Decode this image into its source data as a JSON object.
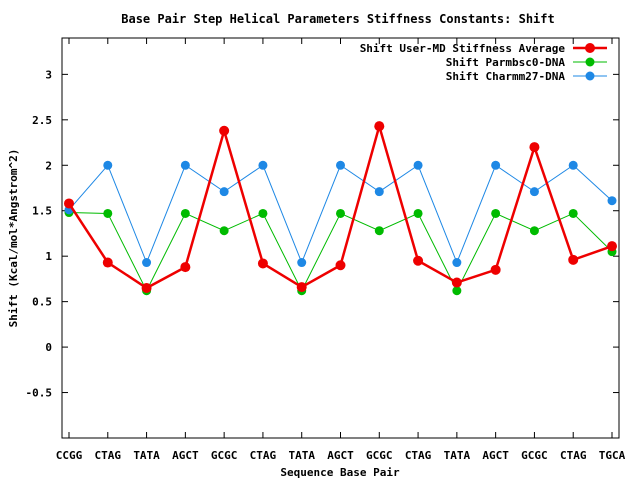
{
  "chart_data": {
    "type": "line",
    "title": "Base Pair Step Helical Parameters Stiffness Constants: Shift",
    "xlabel": "Sequence Base Pair",
    "ylabel": "Shift (Kcal/mol*Angstrom^2)",
    "categories": [
      "CCGG",
      "CTAG",
      "TATA",
      "AGCT",
      "GCGC",
      "CTAG",
      "TATA",
      "AGCT",
      "GCGC",
      "CTAG",
      "TATA",
      "AGCT",
      "GCGC",
      "CTAG",
      "TGCA"
    ],
    "ylim": [
      -1,
      3.4
    ],
    "yticks": [
      -0.5,
      0,
      0.5,
      1,
      1.5,
      2,
      2.5,
      3
    ],
    "ytick_labels": [
      "-0.5",
      "0",
      "0.5",
      "1",
      "1.5",
      "2",
      "2.5",
      "3"
    ],
    "grid": false,
    "legend_position": "top-right",
    "series": [
      {
        "name": "Shift User-MD Stiffness Average",
        "color": "#ee0000",
        "values": [
          1.58,
          0.93,
          0.65,
          0.88,
          2.38,
          0.92,
          0.66,
          0.9,
          2.43,
          0.95,
          0.71,
          0.85,
          2.2,
          0.96,
          1.11
        ]
      },
      {
        "name": "Shift Parmbsc0-DNA",
        "color": "#00bb00",
        "values": [
          1.48,
          1.47,
          0.62,
          1.47,
          1.28,
          1.47,
          0.62,
          1.47,
          1.28,
          1.47,
          0.62,
          1.47,
          1.28,
          1.47,
          1.05
        ]
      },
      {
        "name": "Shift Charmm27-DNA",
        "color": "#1e88e5",
        "values": [
          1.51,
          2.0,
          0.93,
          2.0,
          1.71,
          2.0,
          0.93,
          2.0,
          1.71,
          2.0,
          0.93,
          2.0,
          1.71,
          2.0,
          1.61
        ]
      }
    ]
  }
}
